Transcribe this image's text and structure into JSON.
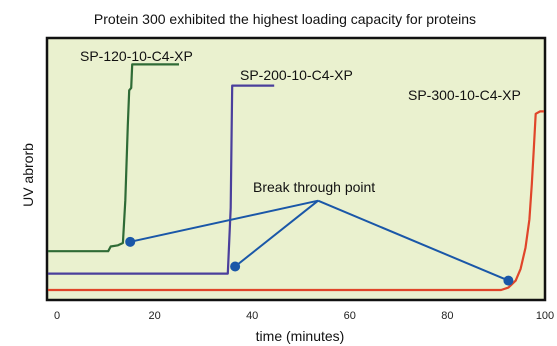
{
  "chart_data": {
    "type": "line",
    "title": "Protein 300 exhibited the highest loading capacity for proteins",
    "xlabel": "time (minutes)",
    "ylabel": "UV abrorb",
    "xlim": [
      0,
      100
    ],
    "ylim": [
      0,
      1
    ],
    "x_ticks": [
      0,
      20,
      40,
      60,
      80,
      100
    ],
    "plot_background": "#eaf1cf",
    "series": [
      {
        "name": "SP-120-10-C4-XP",
        "color": "#2f6b36",
        "points": [
          [
            -2,
            0.165
          ],
          [
            10.5,
            0.165
          ],
          [
            11,
            0.185
          ],
          [
            12.5,
            0.19
          ],
          [
            13.5,
            0.2
          ],
          [
            14,
            0.38
          ],
          [
            14.5,
            0.7
          ],
          [
            14.8,
            0.85
          ],
          [
            15.2,
            0.86
          ],
          [
            15.4,
            0.96
          ],
          [
            25,
            0.96
          ]
        ]
      },
      {
        "name": "SP-200-10-C4-XP",
        "color": "#4a3f9c",
        "points": [
          [
            -2,
            0.07
          ],
          [
            35,
            0.07
          ],
          [
            35.6,
            0.35
          ],
          [
            35.8,
            0.7
          ],
          [
            35.9,
            0.87
          ],
          [
            44.5,
            0.87
          ]
        ]
      },
      {
        "name": "SP-300-10-C4-XP",
        "color": "#e0452a",
        "points": [
          [
            -2,
            0.0
          ],
          [
            91,
            0.0
          ],
          [
            92.5,
            0.01
          ],
          [
            94,
            0.04
          ],
          [
            95,
            0.09
          ],
          [
            96,
            0.18
          ],
          [
            96.8,
            0.3
          ],
          [
            97.3,
            0.45
          ],
          [
            97.7,
            0.6
          ],
          [
            98.1,
            0.75
          ],
          [
            99,
            0.76
          ],
          [
            100.5,
            0.76
          ]
        ]
      }
    ],
    "annotation": {
      "label": "Break through point",
      "color": "#1a57a8",
      "hub": [
        53.5,
        0.38
      ],
      "targets": [
        [
          15,
          0.205
        ],
        [
          36.5,
          0.1
        ],
        [
          92.5,
          0.04
        ]
      ]
    }
  }
}
